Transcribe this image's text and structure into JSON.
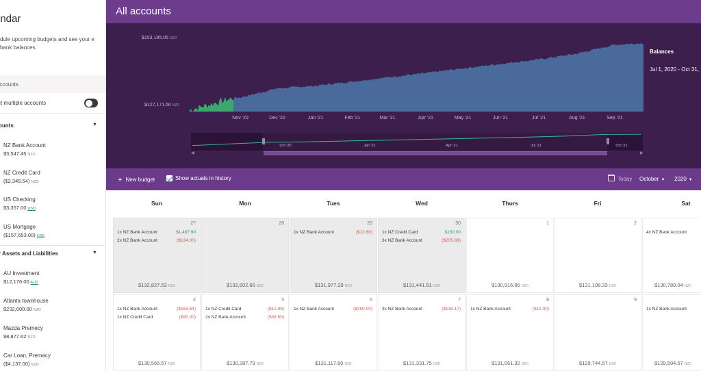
{
  "sidebar": {
    "title": "endar",
    "description": "dule upcoming budgets and see your e bank balances.",
    "accounts_header": "Accounts",
    "select_multiple_label": "ct multiple accounts",
    "groups": [
      {
        "label": "ounts"
      },
      {
        "label": "r Assets and Liabilities"
      }
    ],
    "accounts": [
      {
        "name": "NZ Bank Account",
        "balance": "$3,547.45",
        "currency": "NZD"
      },
      {
        "name": "NZ Credit Card",
        "balance": "($2,345.54)",
        "currency": "NZD"
      },
      {
        "name": "US Checking",
        "balance": "$3,357.00",
        "currency": "USD"
      },
      {
        "name": "US Mortgage",
        "balance": "($157,653.00)",
        "currency": "USD"
      },
      {
        "name": "AU Investment",
        "balance": "$12,176.00",
        "currency": "AUD"
      },
      {
        "name": "Atlanta townhouse",
        "balance": "$232,000.00",
        "currency": "NZD"
      },
      {
        "name": "Mazda Premecy",
        "balance": "$8,877.62",
        "currency": "NZD"
      },
      {
        "name": "Car Loan, Premacy",
        "balance": "($4,137.00)",
        "currency": "NZD"
      }
    ]
  },
  "header": {
    "title": "All accounts"
  },
  "chart": {
    "legend_title": "Balances",
    "legend_range": "Jul 1, 2020 - Oct 31,",
    "y_max_label": "$153,195.05",
    "y_min_label": "$127,171.50",
    "y_currency": "NZD",
    "navigator_ticks": [
      "Oct '20",
      "Jan '21",
      "Apr '21",
      "Jul '21",
      "Oct '21"
    ],
    "colors": {
      "history": "#3aa870",
      "projection": "#4a6a9c",
      "navigator_line": "#3ab59a",
      "background": "#3c1f4d"
    }
  },
  "chart_data": {
    "type": "area",
    "title": "Balances",
    "x": [
      "Nov '20",
      "Dec '20",
      "Jan '21",
      "Feb '21",
      "Mar '21",
      "Apr '21",
      "May '21",
      "Jun '21",
      "Jul '21",
      "Aug '21",
      "Sep '21"
    ],
    "series": [
      {
        "name": "Balances",
        "values": [
          132500,
          136000,
          137000,
          138600,
          140200,
          141800,
          143600,
          145300,
          147000,
          149200,
          152600
        ]
      }
    ],
    "ylim": [
      127171.5,
      153195.05
    ],
    "xlabel": "",
    "ylabel": "",
    "grid": false,
    "legend": "top-right"
  },
  "toolbar": {
    "new_budget_label": "New budget",
    "show_actuals_label": "Show actuals in history",
    "today_label": "Today",
    "month_label": "October",
    "year_label": "2020"
  },
  "calendar": {
    "days_of_week": [
      "Sun",
      "Mon",
      "Tues",
      "Wed",
      "Thurs",
      "Fri",
      "Sat"
    ],
    "currency": "NZD",
    "weeks": [
      [
        {
          "day": "27",
          "past": true,
          "total": "$132,827.53",
          "entries": [
            {
              "label": "1x NZ Bank Account",
              "amount": "$1,487.90",
              "kind": "pos"
            },
            {
              "label": "2x NZ Bank Account",
              "amount": "($134.00)",
              "kind": "neg"
            }
          ]
        },
        {
          "day": "28",
          "past": true,
          "total": "$132,602.60",
          "entries": []
        },
        {
          "day": "29",
          "past": true,
          "total": "$131,977.39",
          "entries": [
            {
              "label": "1x NZ Bank Account",
              "amount": "($12.60)",
              "kind": "neg"
            }
          ]
        },
        {
          "day": "30",
          "past": true,
          "total": "$131,441.51",
          "entries": [
            {
              "label": "1x NZ Credit Card",
              "amount": "$150.00",
              "kind": "pos"
            },
            {
              "label": "3x NZ Bank Account",
              "amount": "($205.69)",
              "kind": "neg"
            }
          ]
        },
        {
          "day": "1",
          "past": false,
          "total": "$130,916.86",
          "entries": []
        },
        {
          "day": "2",
          "past": false,
          "total": "$131,108.33",
          "entries": []
        },
        {
          "day": "",
          "past": false,
          "total": "$130,789.04",
          "entries": [
            {
              "label": "4x NZ Bank Account",
              "amount": "",
              "kind": "neg"
            }
          ]
        }
      ],
      [
        {
          "day": "4",
          "past": false,
          "total": "$130,566.57",
          "entries": [
            {
              "label": "1x NZ Bank Account",
              "amount": "($163.64)",
              "kind": "neg"
            },
            {
              "label": "1x NZ Credit Card",
              "amount": "($90.00)",
              "kind": "neg"
            }
          ]
        },
        {
          "day": "5",
          "past": false,
          "total": "$130,287.79",
          "entries": [
            {
              "label": "1x NZ Credit Card",
              "amount": "($12.99)",
              "kind": "neg"
            },
            {
              "label": "2x NZ Bank Account",
              "amount": "($39.50)",
              "kind": "neg"
            }
          ]
        },
        {
          "day": "6",
          "past": false,
          "total": "$131,117.60",
          "entries": [
            {
              "label": "1x NZ Bank Account",
              "amount": "($250.00)",
              "kind": "neg"
            }
          ]
        },
        {
          "day": "7",
          "past": false,
          "total": "$131,331.75",
          "entries": [
            {
              "label": "3x NZ Bank Account",
              "amount": "($139.17)",
              "kind": "neg"
            }
          ]
        },
        {
          "day": "8",
          "past": false,
          "total": "$131,061.32",
          "entries": [
            {
              "label": "1x NZ Bank Account",
              "amount": "($12.00)",
              "kind": "neg"
            }
          ]
        },
        {
          "day": "9",
          "past": false,
          "total": "$129,744.57",
          "entries": []
        },
        {
          "day": "",
          "past": false,
          "total": "$129,504.57",
          "entries": [
            {
              "label": "1x NZ Bank Account",
              "amount": "",
              "kind": "neg"
            }
          ]
        }
      ]
    ]
  }
}
